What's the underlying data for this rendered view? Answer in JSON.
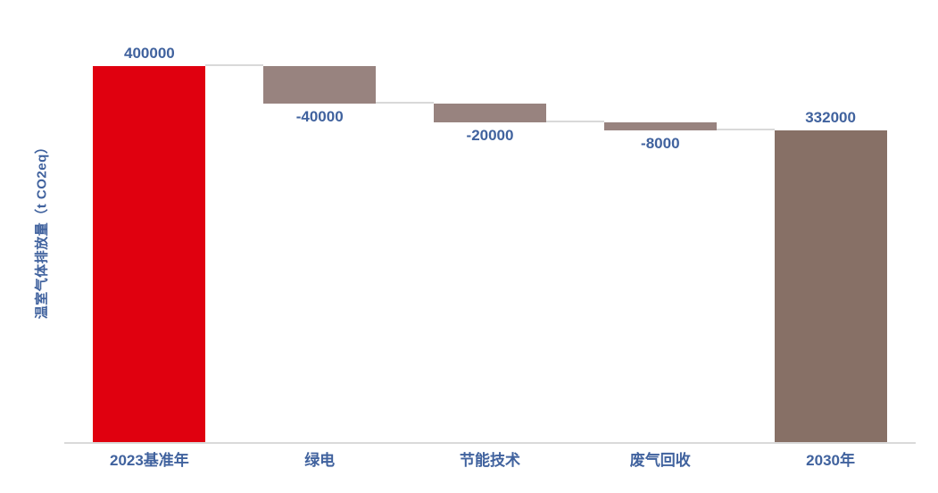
{
  "chart_data": {
    "type": "bar",
    "subtype": "waterfall",
    "title": "",
    "xlabel": "",
    "ylabel": "温室气体排放量（t CO2eq）",
    "categories": [
      "2023基准年",
      "绿电",
      "节能技术",
      "废气回收",
      "2030年"
    ],
    "values": [
      400000,
      -40000,
      -20000,
      -8000,
      332000
    ],
    "value_labels": [
      "400000",
      "-40000",
      "-20000",
      "-8000",
      "332000"
    ],
    "bar_types": [
      "absolute",
      "decrease",
      "decrease",
      "decrease",
      "absolute"
    ],
    "bar_colors": [
      "#e0000f",
      "#98837f",
      "#98837f",
      "#98837f",
      "#877066"
    ],
    "label_color": "#40629e",
    "connector_color": "#d9d9d9",
    "axis_color": "#d9d9d9",
    "background_color": "#ffffff",
    "ylim": [
      0,
      400000
    ],
    "grid": false,
    "legend": false
  }
}
